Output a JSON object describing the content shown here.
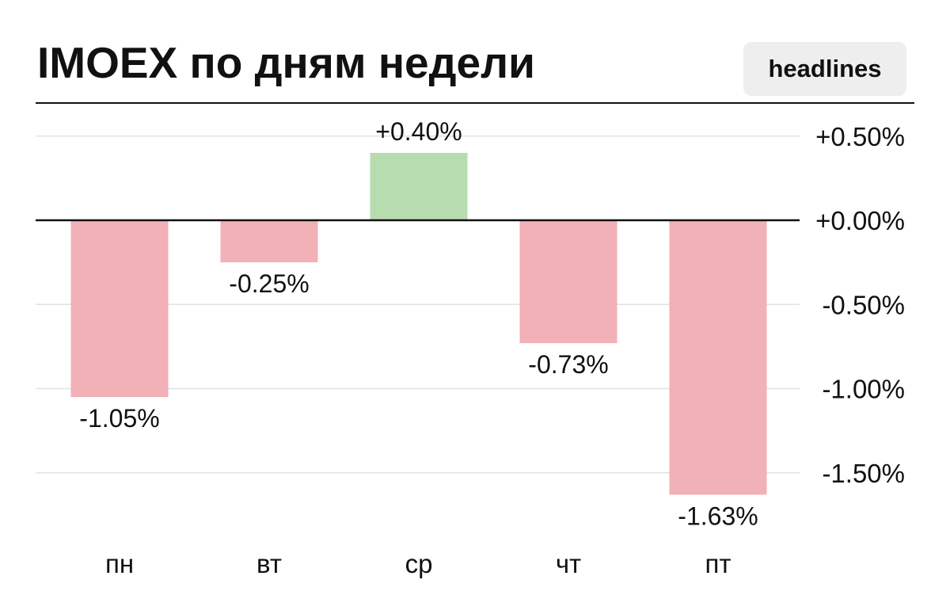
{
  "header": {
    "title": "IMOEX по дням недели",
    "badge": "headlines"
  },
  "colors": {
    "positive": "#b7dcb0",
    "negative": "#f2b0b7",
    "zero_line": "#111111",
    "grid": "#e2e2e2"
  },
  "chart_data": {
    "type": "bar",
    "title": "IMOEX по дням недели",
    "categories": [
      "пн",
      "вт",
      "ср",
      "чт",
      "пт"
    ],
    "values": [
      -1.05,
      -0.25,
      0.4,
      -0.73,
      -1.63
    ],
    "data_labels": [
      "-1.05%",
      "-0.25%",
      "+0.40%",
      "-0.73%",
      "-1.63%"
    ],
    "yticks": [
      0.5,
      0.0,
      -0.5,
      -1.0,
      -1.5
    ],
    "ytick_labels": [
      "+0.50%",
      "+0.00%",
      "-0.50%",
      "-1.00%",
      "-1.50%"
    ],
    "ylim": [
      -1.75,
      0.5
    ],
    "yaxis_side": "right",
    "grid": true,
    "legend": "none"
  }
}
